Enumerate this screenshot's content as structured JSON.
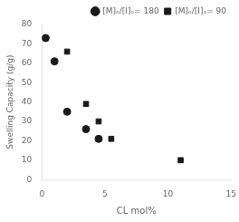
{
  "chart_data": {
    "type": "scatter",
    "xlabel": "CL mol%",
    "ylabel": "Swelling Capacity (g/g)",
    "xlim": [
      0,
      15
    ],
    "ylim": [
      0,
      80
    ],
    "xticks": [
      0,
      5,
      10,
      15
    ],
    "yticks": [
      0,
      10,
      20,
      30,
      40,
      50,
      60,
      70,
      80
    ],
    "grid": false,
    "legend": "upper right",
    "series": [
      {
        "name": "[M]ₒ/[I]ₒ= 180",
        "color": "#1a1a1a",
        "marker": "circle",
        "x": [
          0.3,
          1.0,
          2.0,
          3.5,
          4.5
        ],
        "values": [
          73,
          61,
          35,
          26,
          21
        ]
      },
      {
        "name": "[M]ₒ/[I]ₒ= 90",
        "color": "#1a1a1a",
        "marker": "square",
        "x": [
          2.0,
          3.5,
          4.5,
          5.5,
          11.0
        ],
        "values": [
          66,
          39,
          30,
          21,
          10
        ]
      }
    ]
  }
}
